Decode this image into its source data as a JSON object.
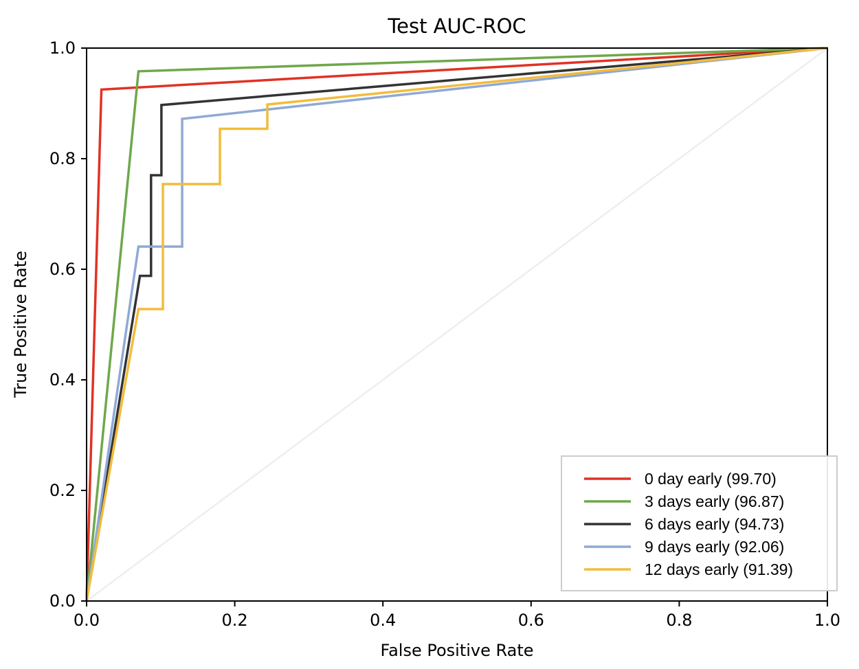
{
  "chart_data": {
    "type": "line",
    "title": "Test AUC-ROC",
    "xlabel": "False Positive Rate",
    "ylabel": "True Positive Rate",
    "xlim": [
      0.0,
      1.0
    ],
    "ylim": [
      0.0,
      1.0
    ],
    "x_ticks": [
      "0.0",
      "0.2",
      "0.4",
      "0.6",
      "0.8",
      "1.0"
    ],
    "y_ticks": [
      "0.0",
      "0.2",
      "0.4",
      "0.6",
      "0.8",
      "1.0"
    ],
    "grid": false,
    "legend_position": "bottom-right",
    "diagonal": {
      "x": [
        0.0,
        1.0
      ],
      "y": [
        0.0,
        1.0
      ],
      "color": "#eeeeee"
    },
    "series": [
      {
        "name": "0 day early (99.70)",
        "color": "#e03224",
        "x": [
          0.0,
          0.02,
          1.0
        ],
        "y": [
          0.0,
          0.925,
          1.0
        ]
      },
      {
        "name": "3 days early (96.87)",
        "color": "#6fa84b",
        "x": [
          0.0,
          0.07,
          1.0
        ],
        "y": [
          0.0,
          0.958,
          1.0
        ]
      },
      {
        "name": "6 days early (94.73)",
        "color": "#333333",
        "x": [
          0.0,
          0.072,
          0.072,
          0.087,
          0.087,
          0.101,
          0.101,
          1.0
        ],
        "y": [
          0.0,
          0.588,
          0.588,
          0.588,
          0.77,
          0.77,
          0.897,
          1.0
        ]
      },
      {
        "name": "9 days early (92.06)",
        "color": "#8fa9d6",
        "x": [
          0.0,
          0.07,
          0.129,
          0.129,
          1.0
        ],
        "y": [
          0.0,
          0.641,
          0.641,
          0.872,
          1.0
        ]
      },
      {
        "name": "12 days early (91.39)",
        "color": "#f2bc3c",
        "x": [
          0.0,
          0.07,
          0.103,
          0.103,
          0.18,
          0.18,
          0.244,
          0.244,
          1.0
        ],
        "y": [
          0.0,
          0.528,
          0.528,
          0.754,
          0.754,
          0.854,
          0.854,
          0.898,
          1.0
        ]
      }
    ]
  }
}
